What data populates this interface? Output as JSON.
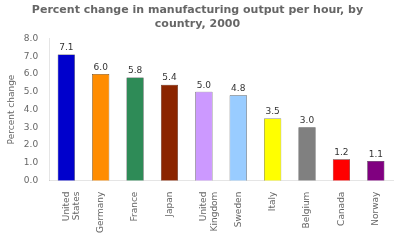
{
  "chart_data": {
    "type": "bar",
    "title": "Percent change in manufacturing output per hour, by\ncountry, 2000",
    "ylabel": "Percent change",
    "categories": [
      "United\nStates",
      "Germany",
      "France",
      "Japan",
      "United\nKingdom",
      "Sweden",
      "Italy",
      "Belgium",
      "Canada",
      "Norway"
    ],
    "values": [
      7.1,
      6.0,
      5.8,
      5.4,
      5.0,
      4.8,
      3.5,
      3.0,
      1.2,
      1.1
    ],
    "value_labels": [
      "7.1",
      "6.0",
      "5.8",
      "5.4",
      "5.0",
      "4.8",
      "3.5",
      "3.0",
      "1.2",
      "1.1"
    ],
    "colors": [
      "#0000cc",
      "#ff8c00",
      "#2e8b57",
      "#8b2500",
      "#cc99ff",
      "#99ccff",
      "#ffff00",
      "#808080",
      "#ff0000",
      "#800080"
    ],
    "ylim": [
      0,
      8.0
    ],
    "yticks": [
      {
        "value": 0.0,
        "label": "0.0"
      },
      {
        "value": 1.0,
        "label": "1.0"
      },
      {
        "value": 2.0,
        "label": "2.0"
      },
      {
        "value": 3.0,
        "label": "3.0"
      },
      {
        "value": 4.0,
        "label": "4.0"
      },
      {
        "value": 5.0,
        "label": "5.0"
      },
      {
        "value": 6.0,
        "label": "6.0"
      },
      {
        "value": 7.0,
        "label": "7.0"
      },
      {
        "value": 8.0,
        "label": "8.0"
      }
    ],
    "grid": false,
    "data_labels": true
  }
}
